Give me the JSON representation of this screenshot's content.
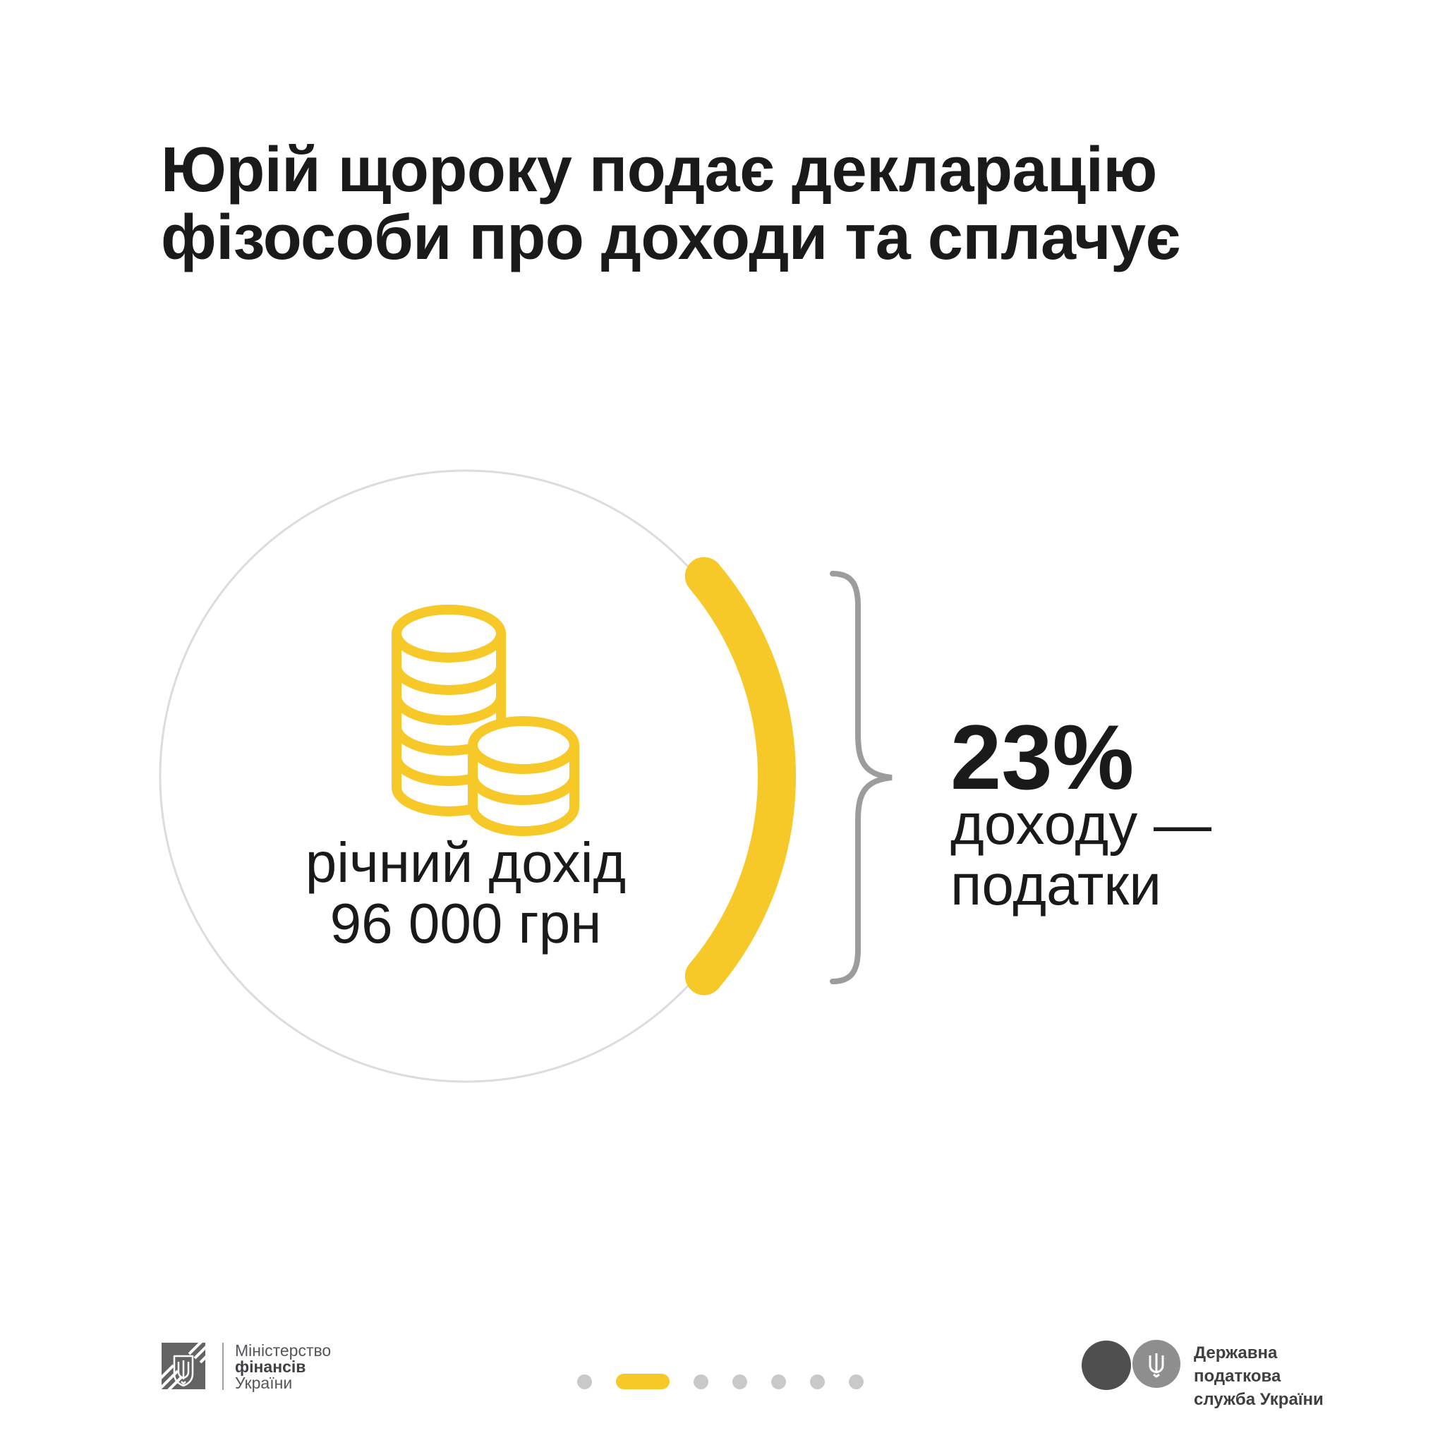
{
  "title": {
    "line1": "Юрій щороку подає декларацію",
    "line2": "фізособи про доходи та сплачує"
  },
  "circle": {
    "icon": "coins-icon",
    "label_line1": "річний дохід",
    "label_line2": "96 000 грн"
  },
  "callout": {
    "percent": "23%",
    "line1": "доходу —",
    "line2": "податки"
  },
  "chart_share": {
    "highlighted_fraction_label": "23%",
    "base_value": "96 000 грн"
  },
  "footer": {
    "minfin": {
      "icon": "ukraine-trident-emblem",
      "line1": "Міністерство",
      "line2": "фінансів",
      "line3": "України"
    },
    "tax_service": {
      "icon": "tax-service-logo",
      "line1": "Державна",
      "line2": "податкова",
      "line3": "служба України"
    },
    "pagination": {
      "total": 7,
      "active_index": 1
    }
  },
  "colors": {
    "accent_yellow": "#f7c928",
    "text_dark": "#1a1a1a",
    "circle_stroke": "#dcdcdc",
    "brace_gray": "#9c9c9c",
    "dot_gray": "#c9c9c9",
    "logo_dark_gray": "#636363",
    "tax_circle_dark": "#4f4f4f",
    "tax_circle_light": "#8e8e8e"
  }
}
